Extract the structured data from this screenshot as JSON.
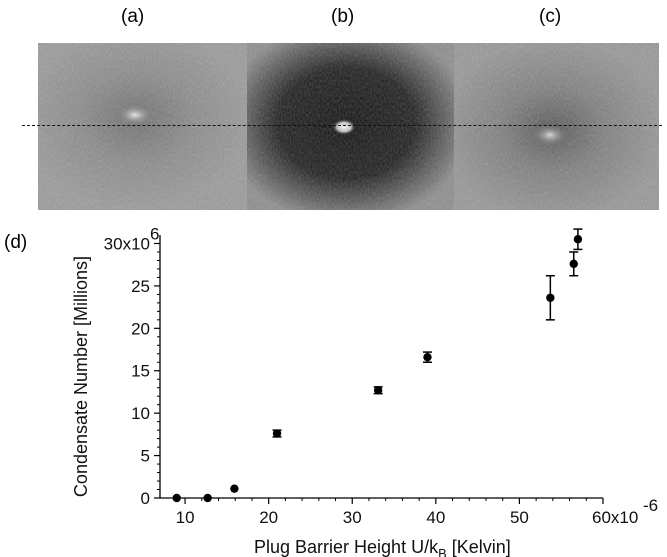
{
  "panels": {
    "a_label": "(a)",
    "b_label": "(b)",
    "c_label": "(c)",
    "d_label": "(d)"
  },
  "chart_data": {
    "type": "scatter",
    "xlabel_main": "Plug Barrier Height U/k",
    "xlabel_sub": "B",
    "xlabel_unit": " [Kelvin]",
    "ylabel": "Condensate Number [Millions]",
    "xlim": [
      7,
      60
    ],
    "ylim": [
      0,
      31
    ],
    "x_ticks": [
      "10",
      "20",
      "30",
      "40",
      "50",
      "60x10"
    ],
    "x_exponent": "-6",
    "y_ticks": [
      "0",
      "5",
      "10",
      "15",
      "20",
      "25",
      "30x10"
    ],
    "y_exponent": "6",
    "grid": false,
    "points": [
      {
        "x": 9.0,
        "y": 0.0,
        "err": 0
      },
      {
        "x": 12.7,
        "y": 0.0,
        "err": 0
      },
      {
        "x": 15.9,
        "y": 1.1,
        "err": 0
      },
      {
        "x": 21.0,
        "y": 7.6,
        "err": 0.4
      },
      {
        "x": 33.1,
        "y": 12.7,
        "err": 0.4
      },
      {
        "x": 39.0,
        "y": 16.6,
        "err": 0.6
      },
      {
        "x": 53.7,
        "y": 23.6,
        "err": 2.6
      },
      {
        "x": 56.5,
        "y": 27.6,
        "err": 1.4
      },
      {
        "x": 57.0,
        "y": 30.5,
        "err": 1.2
      }
    ]
  }
}
